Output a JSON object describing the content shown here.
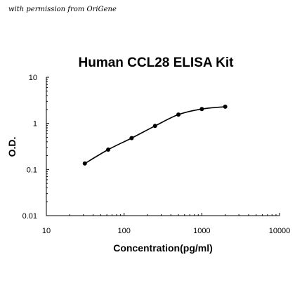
{
  "credit_text": "with permission from OriGene",
  "chart_data": {
    "type": "scatter",
    "title": "Human CCL28 ELISA Kit",
    "xlabel": "Concentration(pg/ml)",
    "ylabel": "O.D.",
    "x_scale": "log",
    "y_scale": "log",
    "xlim": [
      10,
      10000
    ],
    "ylim": [
      0.01,
      10
    ],
    "x_ticks": [
      10,
      100,
      1000,
      10000
    ],
    "x_tick_labels": [
      "10",
      "100",
      "1000",
      "10000"
    ],
    "y_ticks": [
      0.01,
      0.1,
      1,
      10
    ],
    "y_tick_labels": [
      "0.01",
      "0.1",
      "1",
      "10"
    ],
    "grid": false,
    "series": [
      {
        "x": [
          31.25,
          62.5,
          125,
          250,
          500,
          1000,
          2000
        ],
        "y": [
          0.135,
          0.27,
          0.48,
          0.88,
          1.55,
          2.05,
          2.3
        ],
        "fit_curve": true,
        "color": "#000000"
      }
    ]
  }
}
